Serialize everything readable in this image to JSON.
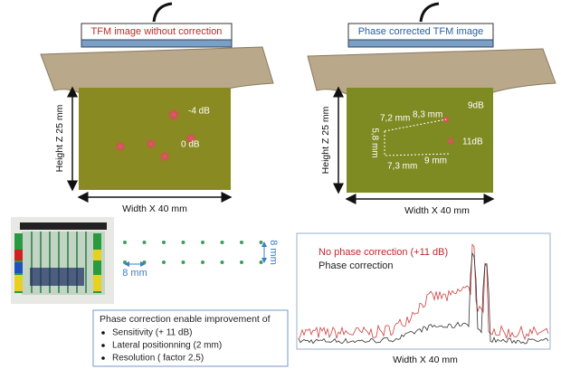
{
  "left_panel": {
    "title": "TFM image without correction",
    "height_label": "Height Z 25 mm",
    "width_label": "Width X 40 mm",
    "annotations": [
      "-4 dB",
      "0 dB"
    ]
  },
  "right_panel": {
    "title": "Phase corrected TFM image",
    "height_label": "Height Z 25 mm",
    "width_label": "Width X 40 mm",
    "annotations": [
      "7,2 mm",
      "8,3 mm",
      "9dB",
      "5,8 mm",
      "11dB",
      "7,3 mm",
      "9 mm"
    ]
  },
  "grid_diagram": {
    "spacing_x": "8 mm",
    "spacing_y": "8 mm"
  },
  "signal_plot": {
    "legend": [
      "No phase correction (+11 dB)",
      "Phase correction"
    ],
    "width_label": "Width X 40 mm"
  },
  "summary": {
    "heading": "Phase correction enable improvement of",
    "items": [
      "Sensitivity (+ 11 dB)",
      "Lateral positionning (2 mm)",
      "Resolution ( factor 2,5)"
    ]
  }
}
